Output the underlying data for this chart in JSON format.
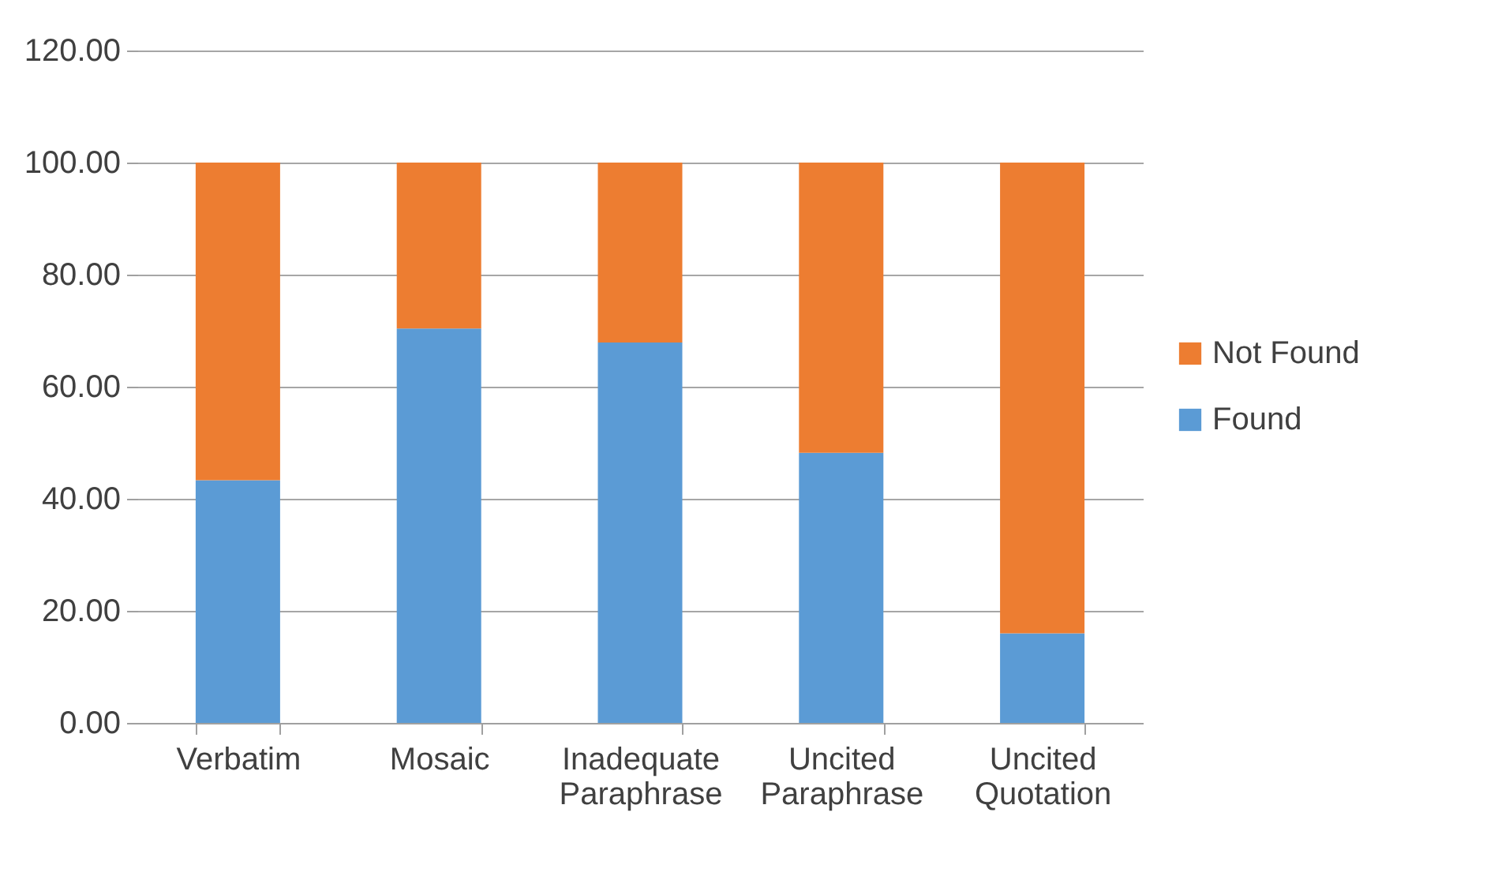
{
  "chart_data": {
    "type": "bar",
    "stacked": true,
    "categories": [
      "Verbatim",
      "Mosaic",
      "Inadequate Paraphrase",
      "Uncited Paraphrase",
      "Uncited Quotation"
    ],
    "series": [
      {
        "name": "Found",
        "color": "#5b9bd5",
        "values": [
          43.3,
          70.4,
          67.9,
          48.2,
          16.0
        ]
      },
      {
        "name": "Not Found",
        "color": "#ed7d31",
        "values": [
          56.7,
          29.6,
          32.1,
          51.8,
          84.0
        ]
      }
    ],
    "ylim": [
      0,
      120
    ],
    "yticks": [
      {
        "value": 0,
        "label": "0.00"
      },
      {
        "value": 20,
        "label": "20.00"
      },
      {
        "value": 40,
        "label": "40.00"
      },
      {
        "value": 60,
        "label": "60.00"
      },
      {
        "value": 80,
        "label": "80.00"
      },
      {
        "value": 100,
        "label": "100.00"
      },
      {
        "value": 120,
        "label": "120.00"
      }
    ],
    "grid": "y",
    "legend": "right"
  }
}
